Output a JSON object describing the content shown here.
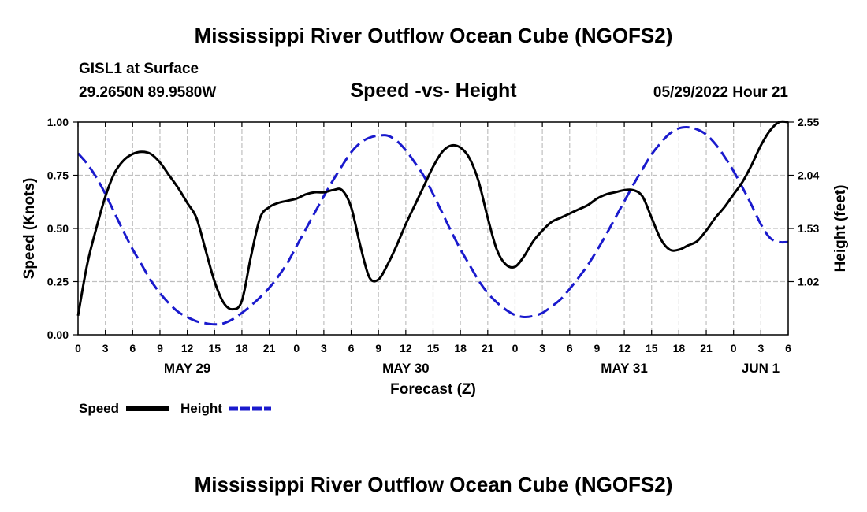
{
  "header": {
    "title": "Mississippi River Outflow Ocean Cube (NGOFS2)",
    "station": "GISL1 at Surface",
    "coords": "29.2650N  89.9580W",
    "subtitle": "Speed -vs- Height",
    "datetime": "05/29/2022 Hour 21"
  },
  "footer": {
    "title": "Mississippi River Outflow Ocean Cube (NGOFS2)"
  },
  "legend": {
    "items": [
      {
        "label": "Speed",
        "color": "#000000",
        "style": "solid"
      },
      {
        "label": "Height",
        "color": "#1a1acd",
        "style": "dashed"
      }
    ]
  },
  "chart_data": {
    "type": "line",
    "title": "Speed -vs- Height",
    "xlabel": "Forecast (Z)",
    "ylabel": "Speed (Knots)",
    "ylabel_right": "Height (feet)",
    "x_range_hours": [
      0,
      78
    ],
    "x_tick_labels": [
      "0",
      "3",
      "6",
      "9",
      "12",
      "15",
      "18",
      "21",
      "0",
      "3",
      "6",
      "9",
      "12",
      "15",
      "18",
      "21",
      "0",
      "3",
      "6",
      "9",
      "12",
      "15",
      "18",
      "21",
      "0",
      "3",
      "6"
    ],
    "date_labels": [
      {
        "label": "MAY 29",
        "hour": 12
      },
      {
        "label": "MAY 30",
        "hour": 36
      },
      {
        "label": "MAY 31",
        "hour": 60
      },
      {
        "label": "JUN 1",
        "hour": 78
      }
    ],
    "ylim": [
      0,
      1
    ],
    "y_ticks": [
      0,
      0.25,
      0.5,
      0.75,
      1.0
    ],
    "y_tick_labels": [
      "0.00",
      "0.25",
      "0.50",
      "0.75",
      "1.00"
    ],
    "ylim_right": [
      0.51,
      2.55
    ],
    "y_ticks_right": [
      1.02,
      1.53,
      2.04,
      2.55
    ],
    "y_tick_labels_right": [
      "1.02",
      "1.53",
      "2.04",
      "2.55"
    ],
    "grid": true,
    "series": [
      {
        "name": "Speed",
        "axis": "left",
        "color": "#000000",
        "x": [
          0,
          1,
          2,
          3,
          4,
          5,
          6,
          7,
          8,
          9,
          10,
          11,
          12,
          13,
          14,
          15,
          16,
          17,
          18,
          19,
          20,
          21,
          22,
          23,
          24,
          25,
          26,
          27,
          28,
          29,
          30,
          31,
          32,
          33,
          34,
          35,
          36,
          37,
          38,
          39,
          40,
          41,
          42,
          43,
          44,
          45,
          46,
          47,
          48,
          49,
          50,
          51,
          52,
          53,
          54,
          55,
          56,
          57,
          58,
          59,
          60,
          61,
          62,
          63,
          64,
          65,
          66,
          67,
          68,
          69,
          70,
          71,
          72,
          73,
          74,
          75,
          76,
          77,
          78
        ],
        "values": [
          0.09,
          0.33,
          0.5,
          0.65,
          0.76,
          0.82,
          0.85,
          0.86,
          0.85,
          0.81,
          0.75,
          0.69,
          0.62,
          0.55,
          0.4,
          0.25,
          0.15,
          0.12,
          0.16,
          0.37,
          0.55,
          0.6,
          0.62,
          0.63,
          0.64,
          0.66,
          0.67,
          0.67,
          0.68,
          0.68,
          0.6,
          0.42,
          0.27,
          0.26,
          0.33,
          0.42,
          0.52,
          0.61,
          0.7,
          0.79,
          0.86,
          0.89,
          0.88,
          0.83,
          0.72,
          0.55,
          0.4,
          0.33,
          0.32,
          0.37,
          0.44,
          0.49,
          0.53,
          0.55,
          0.57,
          0.59,
          0.61,
          0.64,
          0.66,
          0.67,
          0.68,
          0.68,
          0.65,
          0.55,
          0.45,
          0.4,
          0.4,
          0.42,
          0.44,
          0.49,
          0.55,
          0.6,
          0.66,
          0.72,
          0.8,
          0.89,
          0.96,
          1.0,
          1.0
        ]
      },
      {
        "name": "Height",
        "axis": "right",
        "color": "#1a1acd",
        "x": [
          0,
          1,
          2,
          3,
          4,
          5,
          6,
          7,
          8,
          9,
          10,
          11,
          12,
          13,
          14,
          15,
          16,
          17,
          18,
          19,
          20,
          21,
          22,
          23,
          24,
          25,
          26,
          27,
          28,
          29,
          30,
          31,
          32,
          33,
          34,
          35,
          36,
          37,
          38,
          39,
          40,
          41,
          42,
          43,
          44,
          45,
          46,
          47,
          48,
          49,
          50,
          51,
          52,
          53,
          54,
          55,
          56,
          57,
          58,
          59,
          60,
          61,
          62,
          63,
          64,
          65,
          66,
          67,
          68,
          69,
          70,
          71,
          72,
          73,
          74,
          75,
          76,
          77,
          78
        ],
        "values": [
          2.25,
          2.15,
          2.02,
          1.86,
          1.68,
          1.5,
          1.33,
          1.18,
          1.03,
          0.91,
          0.81,
          0.73,
          0.68,
          0.64,
          0.62,
          0.61,
          0.62,
          0.66,
          0.72,
          0.79,
          0.87,
          0.96,
          1.07,
          1.2,
          1.36,
          1.52,
          1.68,
          1.84,
          1.99,
          2.13,
          2.26,
          2.35,
          2.4,
          2.42,
          2.42,
          2.37,
          2.28,
          2.16,
          2.03,
          1.86,
          1.68,
          1.5,
          1.33,
          1.18,
          1.03,
          0.91,
          0.82,
          0.75,
          0.7,
          0.68,
          0.69,
          0.72,
          0.78,
          0.85,
          0.95,
          1.06,
          1.18,
          1.32,
          1.47,
          1.63,
          1.79,
          1.95,
          2.1,
          2.24,
          2.35,
          2.44,
          2.49,
          2.5,
          2.48,
          2.43,
          2.34,
          2.22,
          2.08,
          1.92,
          1.75,
          1.57,
          1.44,
          1.4,
          1.4
        ]
      }
    ]
  }
}
